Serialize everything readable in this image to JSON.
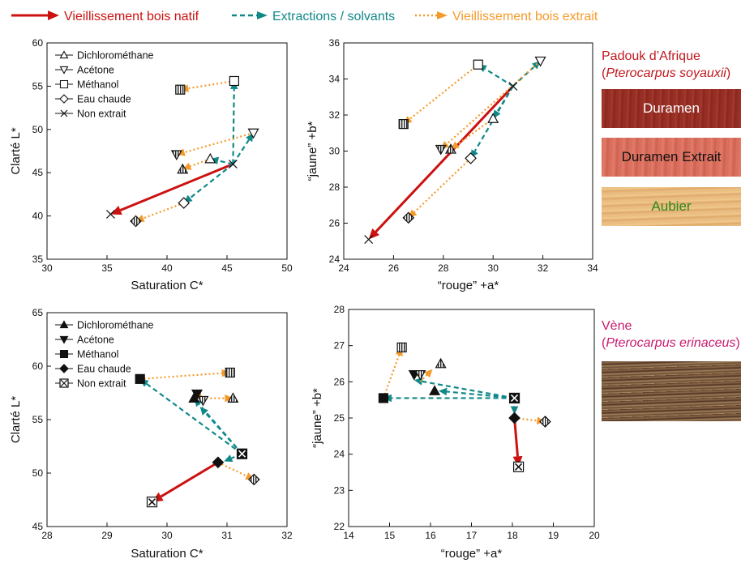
{
  "legend_top": [
    {
      "label": "Vieillissement bois natif",
      "color": "#cc1111",
      "style": "solid"
    },
    {
      "label": "Extractions / solvants",
      "color": "#118888",
      "style": "dashed"
    },
    {
      "label": "Vieillissement bois extrait",
      "color": "#f59a2a",
      "style": "dotted"
    }
  ],
  "colors": {
    "natif": "#cc1111",
    "solvants": "#118888",
    "extrait": "#f59a2a",
    "padouk_title": "#c0181e",
    "vene_title": "#c81a6e",
    "aubier_text": "#2a8a1a"
  },
  "species": {
    "padouk": {
      "name": "Padouk d’Afrique",
      "paren_open": "(",
      "latin": "Pterocarpus soyauxii",
      "paren_close": ")",
      "swatches": {
        "duramen": "Duramen",
        "duramen_extrait": "Duramen Extrait",
        "aubier": "Aubier"
      }
    },
    "vene": {
      "name": "Vène",
      "paren_open": "(",
      "latin": "Pterocarpus erinaceus",
      "paren_close": ")"
    }
  },
  "solvent_names": [
    "Dichlorométhane",
    "Acétone",
    "Méthanol",
    "Eau chaude",
    "Non extrait"
  ],
  "chart_data": [
    {
      "type": "scatter",
      "id": "padouk_LC",
      "xlabel": "Saturation C*",
      "ylabel": "Clarté L*",
      "xlim": [
        30,
        50
      ],
      "ylim": [
        35,
        60
      ],
      "xticks": [
        30,
        35,
        40,
        45,
        50
      ],
      "yticks": [
        35,
        40,
        45,
        50,
        55,
        60
      ],
      "marker_fill": "open",
      "legend_entries": [
        "Dichlorométhane",
        "Acétone",
        "Méthanol",
        "Eau chaude",
        "Non extrait"
      ],
      "points": [
        {
          "series": "Non extrait",
          "state": "initial",
          "marker": "x",
          "x": 45.5,
          "y": 46.0
        },
        {
          "series": "Non extrait",
          "state": "aged",
          "marker": "x",
          "x": 35.3,
          "y": 40.2
        },
        {
          "series": "Dichlorométhane",
          "state": "extracted",
          "marker": "tri_up",
          "x": 43.6,
          "y": 46.6
        },
        {
          "series": "Dichlorométhane",
          "state": "aged",
          "marker": "tri_up",
          "x": 41.3,
          "y": 45.4
        },
        {
          "series": "Acétone",
          "state": "extracted",
          "marker": "tri_down",
          "x": 47.2,
          "y": 49.6
        },
        {
          "series": "Acétone",
          "state": "aged",
          "marker": "tri_down",
          "x": 40.8,
          "y": 47.1
        },
        {
          "series": "Méthanol",
          "state": "extracted",
          "marker": "square",
          "x": 45.6,
          "y": 55.6
        },
        {
          "series": "Méthanol",
          "state": "aged",
          "marker": "square",
          "x": 41.1,
          "y": 54.6
        },
        {
          "series": "Eau chaude",
          "state": "extracted",
          "marker": "diamond",
          "x": 41.4,
          "y": 41.5
        },
        {
          "series": "Eau chaude",
          "state": "aged",
          "marker": "diamond",
          "x": 37.4,
          "y": 39.4
        }
      ],
      "arrows": [
        {
          "kind": "natif",
          "from": [
            45.5,
            46.0
          ],
          "to": [
            35.3,
            40.2
          ]
        },
        {
          "kind": "solvants",
          "from": [
            45.5,
            46.0
          ],
          "to": [
            43.6,
            46.6
          ]
        },
        {
          "kind": "solvants",
          "from": [
            45.5,
            46.0
          ],
          "to": [
            47.2,
            49.6
          ]
        },
        {
          "kind": "solvants",
          "from": [
            45.5,
            46.0
          ],
          "to": [
            45.6,
            55.6
          ]
        },
        {
          "kind": "solvants",
          "from": [
            45.5,
            46.0
          ],
          "to": [
            41.4,
            41.5
          ]
        },
        {
          "kind": "extrait",
          "from": [
            43.6,
            46.6
          ],
          "to": [
            41.3,
            45.4
          ]
        },
        {
          "kind": "extrait",
          "from": [
            47.2,
            49.6
          ],
          "to": [
            40.8,
            47.1
          ]
        },
        {
          "kind": "extrait",
          "from": [
            45.6,
            55.6
          ],
          "to": [
            41.1,
            54.6
          ]
        },
        {
          "kind": "extrait",
          "from": [
            41.4,
            41.5
          ],
          "to": [
            37.4,
            39.4
          ]
        }
      ]
    },
    {
      "type": "scatter",
      "id": "padouk_ab",
      "xlabel": "“rouge” +a*",
      "ylabel": "“jaune” +b*",
      "xlim": [
        24,
        34
      ],
      "ylim": [
        24,
        36
      ],
      "xticks": [
        24,
        26,
        28,
        30,
        32,
        34
      ],
      "yticks": [
        24,
        26,
        28,
        30,
        32,
        34,
        36
      ],
      "marker_fill": "open",
      "points": [
        {
          "series": "Non extrait",
          "state": "initial",
          "marker": "x",
          "x": 30.8,
          "y": 33.6
        },
        {
          "series": "Non extrait",
          "state": "aged",
          "marker": "x",
          "x": 25.0,
          "y": 25.1
        },
        {
          "series": "Dichlorométhane",
          "state": "extracted",
          "marker": "tri_up",
          "x": 30.0,
          "y": 31.8
        },
        {
          "series": "Dichlorométhane",
          "state": "aged",
          "marker": "tri_up",
          "x": 28.3,
          "y": 30.1
        },
        {
          "series": "Acétone",
          "state": "extracted",
          "marker": "tri_down",
          "x": 31.9,
          "y": 35.0
        },
        {
          "series": "Acétone",
          "state": "aged",
          "marker": "tri_down",
          "x": 27.9,
          "y": 30.1
        },
        {
          "series": "Méthanol",
          "state": "extracted",
          "marker": "square",
          "x": 29.4,
          "y": 34.8
        },
        {
          "series": "Méthanol",
          "state": "aged",
          "marker": "square",
          "x": 26.4,
          "y": 31.5
        },
        {
          "series": "Eau chaude",
          "state": "extracted",
          "marker": "diamond",
          "x": 29.1,
          "y": 29.6
        },
        {
          "series": "Eau chaude",
          "state": "aged",
          "marker": "diamond",
          "x": 26.6,
          "y": 26.3
        }
      ],
      "arrows": [
        {
          "kind": "natif",
          "from": [
            30.8,
            33.6
          ],
          "to": [
            25.0,
            25.1
          ]
        },
        {
          "kind": "solvants",
          "from": [
            30.8,
            33.6
          ],
          "to": [
            30.0,
            31.8
          ]
        },
        {
          "kind": "solvants",
          "from": [
            30.8,
            33.6
          ],
          "to": [
            31.9,
            35.0
          ]
        },
        {
          "kind": "solvants",
          "from": [
            30.8,
            33.6
          ],
          "to": [
            29.4,
            34.8
          ]
        },
        {
          "kind": "solvants",
          "from": [
            30.8,
            33.6
          ],
          "to": [
            29.1,
            29.6
          ]
        },
        {
          "kind": "extrait",
          "from": [
            30.0,
            31.8
          ],
          "to": [
            28.3,
            30.1
          ]
        },
        {
          "kind": "extrait",
          "from": [
            31.9,
            35.0
          ],
          "to": [
            27.9,
            30.1
          ]
        },
        {
          "kind": "extrait",
          "from": [
            29.4,
            34.8
          ],
          "to": [
            26.4,
            31.5
          ]
        },
        {
          "kind": "extrait",
          "from": [
            29.1,
            29.6
          ],
          "to": [
            26.6,
            26.3
          ]
        }
      ]
    },
    {
      "type": "scatter",
      "id": "vene_LC",
      "xlabel": "Saturation C*",
      "ylabel": "Clarté L*",
      "xlim": [
        28,
        32
      ],
      "ylim": [
        45,
        65
      ],
      "xticks": [
        28,
        29,
        30,
        31,
        32
      ],
      "yticks": [
        45,
        50,
        55,
        60,
        65
      ],
      "marker_fill": "filled",
      "legend_entries": [
        "Dichlorométhane",
        "Acétone",
        "Méthanol",
        "Eau chaude",
        "Non extrait"
      ],
      "points": [
        {
          "series": "Non extrait",
          "state": "initial",
          "marker": "boxx",
          "x": 31.25,
          "y": 51.8
        },
        {
          "series": "Non extrait",
          "state": "aged",
          "marker": "boxx",
          "x": 29.75,
          "y": 47.3
        },
        {
          "series": "Dichlorométhane",
          "state": "extracted",
          "marker": "tri_up",
          "x": 30.45,
          "y": 57.0
        },
        {
          "series": "Dichlorométhane",
          "state": "aged",
          "marker": "tri_up",
          "x": 31.1,
          "y": 57.0
        },
        {
          "series": "Acétone",
          "state": "extracted",
          "marker": "tri_down",
          "x": 30.5,
          "y": 57.4
        },
        {
          "series": "Acétone",
          "state": "aged",
          "marker": "tri_down",
          "x": 30.6,
          "y": 56.8
        },
        {
          "series": "Méthanol",
          "state": "extracted",
          "marker": "square",
          "x": 29.55,
          "y": 58.8
        },
        {
          "series": "Méthanol",
          "state": "aged",
          "marker": "square",
          "x": 31.05,
          "y": 59.4
        },
        {
          "series": "Eau chaude",
          "state": "extracted",
          "marker": "diamond",
          "x": 30.85,
          "y": 51.0
        },
        {
          "series": "Eau chaude",
          "state": "aged",
          "marker": "diamond",
          "x": 31.45,
          "y": 49.4
        }
      ],
      "arrows": [
        {
          "kind": "natif",
          "from": [
            30.85,
            51.0
          ],
          "to": [
            29.75,
            47.3
          ]
        },
        {
          "kind": "solvants",
          "from": [
            31.25,
            51.8
          ],
          "to": [
            29.55,
            58.8
          ]
        },
        {
          "kind": "solvants",
          "from": [
            31.25,
            51.8
          ],
          "to": [
            30.45,
            57.0
          ]
        },
        {
          "kind": "solvants",
          "from": [
            31.25,
            51.8
          ],
          "to": [
            30.55,
            56.2
          ]
        },
        {
          "kind": "solvants",
          "from": [
            31.25,
            51.8
          ],
          "to": [
            30.95,
            51.1
          ]
        },
        {
          "kind": "extrait",
          "from": [
            29.55,
            58.8
          ],
          "to": [
            31.05,
            59.4
          ]
        },
        {
          "kind": "extrait",
          "from": [
            30.45,
            57.0
          ],
          "to": [
            31.1,
            57.0
          ]
        },
        {
          "kind": "extrait",
          "from": [
            30.5,
            57.4
          ],
          "to": [
            30.6,
            56.8
          ]
        },
        {
          "kind": "extrait",
          "from": [
            30.85,
            51.0
          ],
          "to": [
            31.45,
            49.4
          ]
        }
      ]
    },
    {
      "type": "scatter",
      "id": "vene_ab",
      "xlabel": "“rouge” +a*",
      "ylabel": "“jaune” +b*",
      "xlim": [
        14,
        20
      ],
      "ylim": [
        22,
        28
      ],
      "xticks": [
        14,
        15,
        16,
        17,
        18,
        19,
        20
      ],
      "yticks": [
        22,
        23,
        24,
        25,
        26,
        27,
        28
      ],
      "marker_fill": "filled",
      "points": [
        {
          "series": "Non extrait",
          "state": "initial",
          "marker": "boxx",
          "x": 18.05,
          "y": 25.55
        },
        {
          "series": "Non extrait",
          "state": "aged",
          "marker": "boxx",
          "x": 18.15,
          "y": 23.65
        },
        {
          "series": "Dichlorométhane",
          "state": "extracted",
          "marker": "tri_up",
          "x": 16.1,
          "y": 25.75
        },
        {
          "series": "Dichlorométhane",
          "state": "aged",
          "marker": "tri_up",
          "x": 16.25,
          "y": 26.5
        },
        {
          "series": "Acétone",
          "state": "extracted",
          "marker": "tri_down",
          "x": 15.6,
          "y": 26.2
        },
        {
          "series": "Acétone",
          "state": "aged",
          "marker": "tri_down",
          "x": 15.75,
          "y": 26.2
        },
        {
          "series": "Méthanol",
          "state": "extracted",
          "marker": "square",
          "x": 14.85,
          "y": 25.55
        },
        {
          "series": "Méthanol",
          "state": "aged",
          "marker": "square",
          "x": 15.3,
          "y": 26.95
        },
        {
          "series": "Eau chaude",
          "state": "extracted",
          "marker": "diamond",
          "x": 18.05,
          "y": 25.0
        },
        {
          "series": "Eau chaude",
          "state": "aged",
          "marker": "diamond",
          "x": 18.8,
          "y": 24.9
        }
      ],
      "arrows": [
        {
          "kind": "natif",
          "from": [
            18.05,
            25.0
          ],
          "to": [
            18.15,
            23.65
          ]
        },
        {
          "kind": "solvants",
          "from": [
            18.05,
            25.55
          ],
          "to": [
            14.85,
            25.55
          ]
        },
        {
          "kind": "solvants",
          "from": [
            18.05,
            25.55
          ],
          "to": [
            15.6,
            26.05
          ]
        },
        {
          "kind": "solvants",
          "from": [
            18.05,
            25.55
          ],
          "to": [
            16.2,
            25.75
          ]
        },
        {
          "kind": "solvants",
          "from": [
            18.05,
            25.55
          ],
          "to": [
            18.05,
            25.1
          ]
        },
        {
          "kind": "extrait",
          "from": [
            14.85,
            25.55
          ],
          "to": [
            15.3,
            26.95
          ]
        },
        {
          "kind": "extrait",
          "from": [
            15.6,
            26.2
          ],
          "to": [
            15.75,
            26.2
          ]
        },
        {
          "kind": "extrait",
          "from": [
            15.75,
            26.0
          ],
          "to": [
            16.05,
            26.35
          ]
        },
        {
          "kind": "extrait",
          "from": [
            18.05,
            25.0
          ],
          "to": [
            18.8,
            24.9
          ]
        }
      ]
    }
  ]
}
